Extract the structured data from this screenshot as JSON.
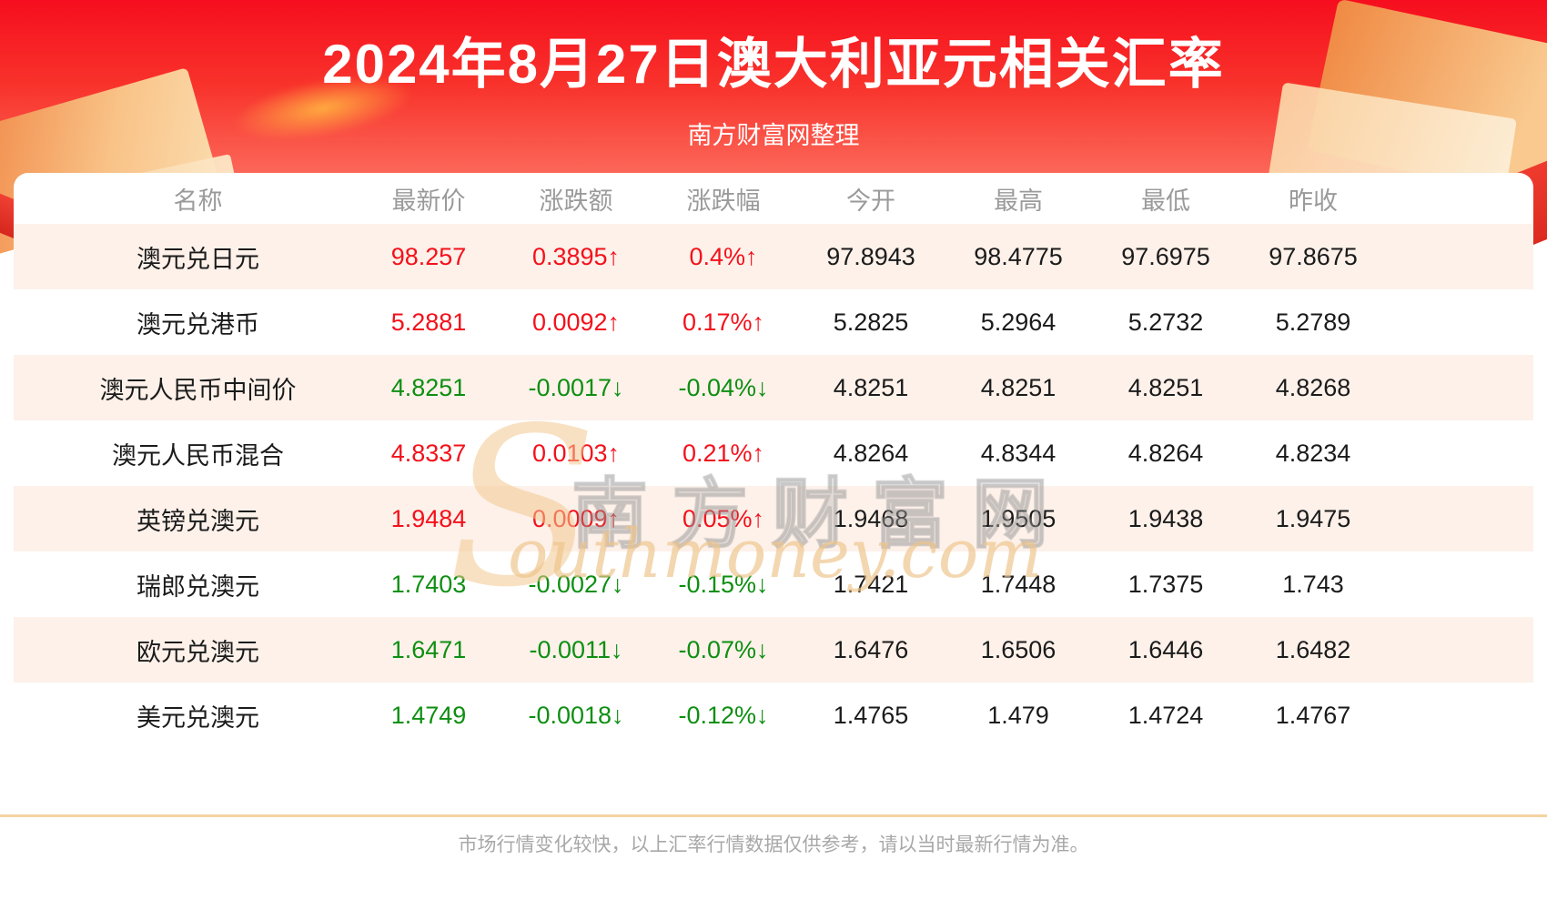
{
  "banner": {
    "title": "2024年8月27日澳大利亚元相关汇率",
    "subtitle": "南方财富网整理"
  },
  "chart_data": {
    "type": "table",
    "title": "2024年8月27日澳大利亚元相关汇率",
    "columns": [
      "名称",
      "最新价",
      "涨跌额",
      "涨跌幅",
      "今开",
      "最高",
      "最低",
      "昨收"
    ],
    "rows": [
      {
        "name": "澳元兑日元",
        "latest": "98.257",
        "change": "0.3895↑",
        "change_pct": "0.4%↑",
        "direction": "up",
        "open": "97.8943",
        "high": "98.4775",
        "low": "97.6975",
        "prev_close": "97.8675"
      },
      {
        "name": "澳元兑港币",
        "latest": "5.2881",
        "change": "0.0092↑",
        "change_pct": "0.17%↑",
        "direction": "up",
        "open": "5.2825",
        "high": "5.2964",
        "low": "5.2732",
        "prev_close": "5.2789"
      },
      {
        "name": "澳元人民币中间价",
        "latest": "4.8251",
        "change": "-0.0017↓",
        "change_pct": "-0.04%↓",
        "direction": "down",
        "open": "4.8251",
        "high": "4.8251",
        "low": "4.8251",
        "prev_close": "4.8268"
      },
      {
        "name": "澳元人民币混合",
        "latest": "4.8337",
        "change": "0.0103↑",
        "change_pct": "0.21%↑",
        "direction": "up",
        "open": "4.8264",
        "high": "4.8344",
        "low": "4.8264",
        "prev_close": "4.8234"
      },
      {
        "name": "英镑兑澳元",
        "latest": "1.9484",
        "change": "0.0009↑",
        "change_pct": "0.05%↑",
        "direction": "up",
        "open": "1.9468",
        "high": "1.9505",
        "low": "1.9438",
        "prev_close": "1.9475"
      },
      {
        "name": "瑞郎兑澳元",
        "latest": "1.7403",
        "change": "-0.0027↓",
        "change_pct": "-0.15%↓",
        "direction": "down",
        "open": "1.7421",
        "high": "1.7448",
        "low": "1.7375",
        "prev_close": "1.743"
      },
      {
        "name": "欧元兑澳元",
        "latest": "1.6471",
        "change": "-0.0011↓",
        "change_pct": "-0.07%↓",
        "direction": "down",
        "open": "1.6476",
        "high": "1.6506",
        "low": "1.6446",
        "prev_close": "1.6482"
      },
      {
        "name": "美元兑澳元",
        "latest": "1.4749",
        "change": "-0.0018↓",
        "change_pct": "-0.12%↓",
        "direction": "down",
        "open": "1.4765",
        "high": "1.479",
        "low": "1.4724",
        "prev_close": "1.4767"
      }
    ]
  },
  "watermark": {
    "initial": "S",
    "cn": "南方财富网",
    "en": "outhmoney.com"
  },
  "footer": {
    "note": "市场行情变化较快，以上汇率行情数据仅供参考，请以当时最新行情为准。"
  },
  "colors": {
    "up": "#f3111b",
    "down": "#0e8f12",
    "banner_top": "#f60e1e",
    "banner_bottom": "#fd7e6c",
    "row_alt": "#fdf1ea",
    "divider": "#f5d3a1"
  }
}
